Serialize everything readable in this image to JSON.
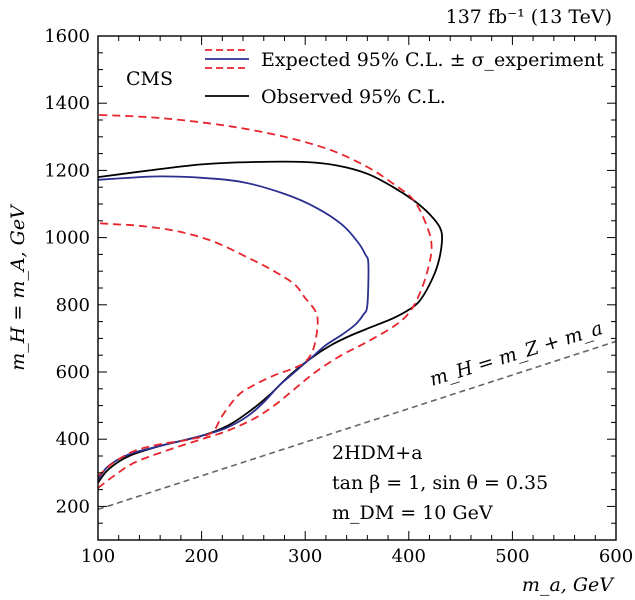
{
  "chart_data": {
    "type": "line",
    "lumi_label": "137 fb⁻¹ (13 TeV)",
    "experiment_label": "CMS",
    "xlabel": "m_a, GeV",
    "ylabel": "m_H = m_A, GeV",
    "xlim": [
      100,
      600
    ],
    "ylim": [
      100,
      1600
    ],
    "xticks": [
      100,
      200,
      300,
      400,
      500,
      600
    ],
    "yticks": [
      200,
      400,
      600,
      800,
      1000,
      1200,
      1400,
      1600
    ],
    "grid": false,
    "legend_position": "top",
    "legend": [
      {
        "label": "Expected 95% C.L. ± σ_experiment"
      },
      {
        "label": "Observed 95% C.L."
      }
    ],
    "annotations": {
      "model": "2HDM+a",
      "params": "tan β = 1, sin θ = 0.35",
      "dm": "m_DM = 10 GeV",
      "ref_line_label": "m_H = m_Z + m_a"
    },
    "colors": {
      "observed": "#000000",
      "expected": "#2b2f8f",
      "band": "#e8242c",
      "ref": "#666666"
    },
    "series": [
      {
        "name": "Observed 95% C.L.",
        "role": "observed",
        "style": "solid",
        "x": [
          100,
          110,
          130,
          160,
          200,
          225,
          245,
          265,
          285,
          305,
          325,
          345,
          365,
          385,
          400,
          410,
          420,
          428,
          432,
          430,
          420,
          405,
          385,
          360,
          330,
          300,
          250,
          200,
          150,
          100
        ],
        "y": [
          270,
          310,
          350,
          380,
          410,
          440,
          480,
          530,
          590,
          640,
          680,
          710,
          735,
          760,
          785,
          810,
          860,
          920,
          990,
          1030,
          1070,
          1110,
          1150,
          1190,
          1215,
          1225,
          1225,
          1218,
          1200,
          1180
        ]
      },
      {
        "name": "Expected 95% C.L.",
        "role": "expected",
        "style": "solid",
        "x": [
          100,
          110,
          130,
          160,
          200,
          225,
          245,
          260,
          275,
          290,
          305,
          320,
          335,
          348,
          356,
          360,
          361,
          358,
          350,
          335,
          310,
          280,
          240,
          200,
          160,
          130,
          100
        ],
        "y": [
          280,
          320,
          355,
          380,
          410,
          435,
          470,
          510,
          560,
          600,
          640,
          680,
          710,
          740,
          770,
          800,
          920,
          950,
          990,
          1040,
          1090,
          1130,
          1165,
          1178,
          1182,
          1178,
          1172
        ]
      },
      {
        "name": "Expected +σ",
        "role": "band",
        "style": "dashed",
        "x": [
          100,
          115,
          135,
          165,
          200,
          225,
          250,
          270,
          290,
          310,
          335,
          360,
          385,
          400,
          410,
          418,
          422,
          418,
          405,
          385,
          360,
          325,
          280,
          230,
          180,
          140,
          100
        ],
        "y": [
          255,
          290,
          330,
          365,
          400,
          425,
          460,
          500,
          550,
          600,
          650,
          690,
          735,
          775,
          830,
          900,
          970,
          1030,
          1110,
          1160,
          1210,
          1260,
          1300,
          1330,
          1350,
          1360,
          1365
        ]
      },
      {
        "name": "Expected −σ",
        "role": "band",
        "style": "dashed",
        "x": [
          100,
          115,
          135,
          160,
          190,
          210,
          220,
          235,
          250,
          270,
          288,
          300,
          308,
          312,
          310,
          300,
          290,
          270,
          245,
          210,
          175,
          140,
          115,
          100
        ],
        "y": [
          290,
          330,
          365,
          385,
          400,
          420,
          470,
          530,
          560,
          590,
          610,
          630,
          670,
          740,
          780,
          820,
          860,
          900,
          940,
          990,
          1020,
          1035,
          1040,
          1043
        ]
      },
      {
        "name": "m_H = m_Z + m_a",
        "role": "ref",
        "style": "dashed",
        "x": [
          100,
          600
        ],
        "y": [
          191,
          691
        ]
      }
    ]
  }
}
